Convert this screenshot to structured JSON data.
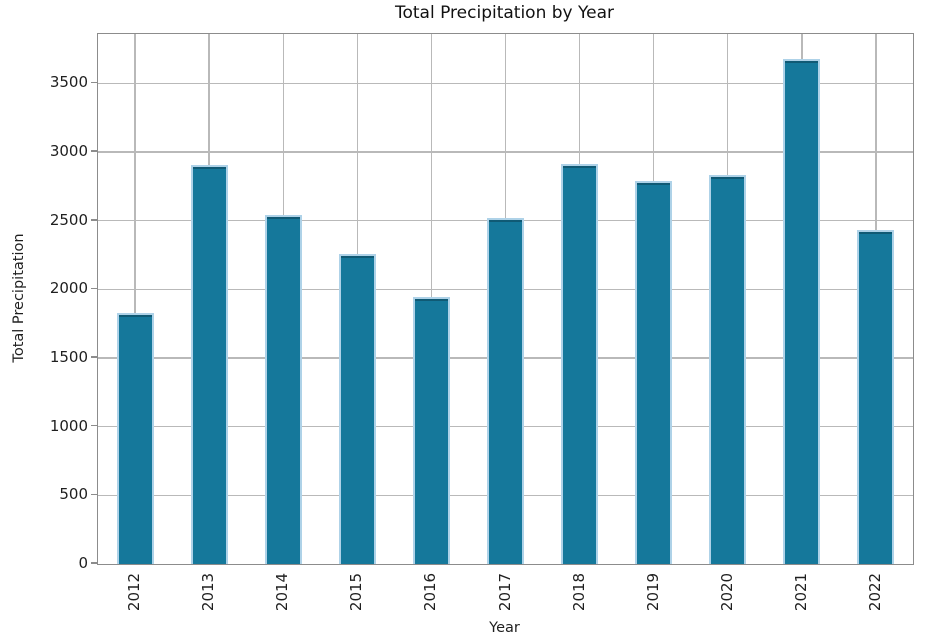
{
  "chart_data": {
    "type": "bar",
    "title": "Total Precipitation by Year",
    "xlabel": "Year",
    "ylabel": "Total Precipitation",
    "categories": [
      "2012",
      "2013",
      "2014",
      "2015",
      "2016",
      "2017",
      "2018",
      "2019",
      "2020",
      "2021",
      "2022"
    ],
    "values": [
      1830,
      2905,
      2540,
      2255,
      1945,
      2520,
      2915,
      2790,
      2830,
      3675,
      2435
    ],
    "yticks": [
      0,
      500,
      1000,
      1500,
      2000,
      2500,
      3000,
      3500
    ],
    "ylim": [
      0,
      3860
    ],
    "grid": true,
    "legend_position": "none",
    "xtick_rotation_degrees": 90,
    "bar_color": "#15789b",
    "bar_edge_color": "#aed2e8",
    "grid_color": "#b9b9b9",
    "spine_color": "#8c8c8c",
    "background_color": "#ffffff"
  }
}
